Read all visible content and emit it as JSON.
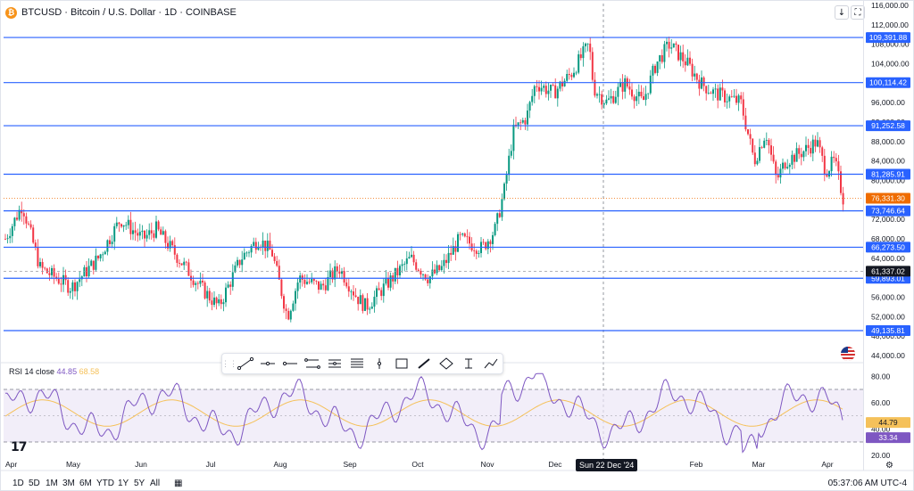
{
  "header": {
    "icon": "bitcoin-icon",
    "title": "BTCUSD · Bitcoin / U.S. Dollar · 1D · COINBASE"
  },
  "top_buttons": [
    {
      "name": "arrow-down-icon",
      "glyph": "↓"
    },
    {
      "name": "fullscreen-icon",
      "glyph": "⛶"
    }
  ],
  "price_axis": {
    "ticks": [
      "116,000.00",
      "112,000.00",
      "108,000.00",
      "104,000.00",
      "100,000.00",
      "96,000.00",
      "92,000.00",
      "88,000.00",
      "84,000.00",
      "80,000.00",
      "76,000.00",
      "72,000.00",
      "68,000.00",
      "64,000.00",
      "60,000.00",
      "56,000.00",
      "52,000.00",
      "48,000.00",
      "44,000.00"
    ]
  },
  "horizontal_lines": [
    {
      "label": "109,391.88",
      "value": 109391.88
    },
    {
      "label": "100,114.42",
      "value": 100114.42
    },
    {
      "label": "91,252.58",
      "value": 91252.58
    },
    {
      "label": "81,285.91",
      "value": 81285.91
    },
    {
      "label": "73,746.64",
      "value": 73746.64
    },
    {
      "label": "66,273.50",
      "value": 66273.5
    },
    {
      "label": "59,893.01",
      "value": 59893.01
    },
    {
      "label": "49,135.81",
      "value": 49135.81
    }
  ],
  "last_price": {
    "label": "76,331.30",
    "value": 76331.3,
    "color": "#ef6c00"
  },
  "crosshair_price": {
    "label": "61,337.02",
    "value": 61337.02
  },
  "rsi": {
    "label": "RSI 14 close",
    "value": "44.85",
    "ma_value": "68.58",
    "ticks": [
      "80.00",
      "60.00",
      "40.00",
      "20.00"
    ],
    "badges": [
      {
        "label": "44.79",
        "value": 44.79,
        "color": "#f5c15a"
      },
      {
        "label": "33.34",
        "value": 33.34,
        "color": "#7e57c2"
      }
    ]
  },
  "time_axis": {
    "labels": [
      "Apr",
      "May",
      "Jun",
      "Jul",
      "Aug",
      "Sep",
      "Oct",
      "Nov",
      "Dec",
      "Feb",
      "Mar",
      "Apr"
    ]
  },
  "crosshair_date": "Sun 22 Dec '24",
  "range_buttons": [
    "1D",
    "5D",
    "1M",
    "3M",
    "6M",
    "YTD",
    "1Y",
    "5Y",
    "All"
  ],
  "calendar_icon": "calendar-icon",
  "clock": "05:37:06 AM UTC-4",
  "colors": {
    "up": "#089981",
    "down": "#f23645",
    "hline": "#2962ff",
    "rsi": "#7e57c2",
    "rsi_ma": "#f5c15a",
    "rsi_band": "#ede7f6"
  },
  "toolbar": {
    "tools": [
      "drag-handle-icon",
      "trend-line-icon",
      "horizontal-line-icon",
      "horizontal-ray-icon",
      "parallel-channel-icon",
      "pitchfork-icon",
      "fib-retracement-icon",
      "vertical-line-icon",
      "rectangle-icon",
      "brush-icon",
      "polyline-icon",
      "date-range-icon",
      "path-icon"
    ]
  },
  "logo": "17",
  "settings_icon": "settings-icon"
}
